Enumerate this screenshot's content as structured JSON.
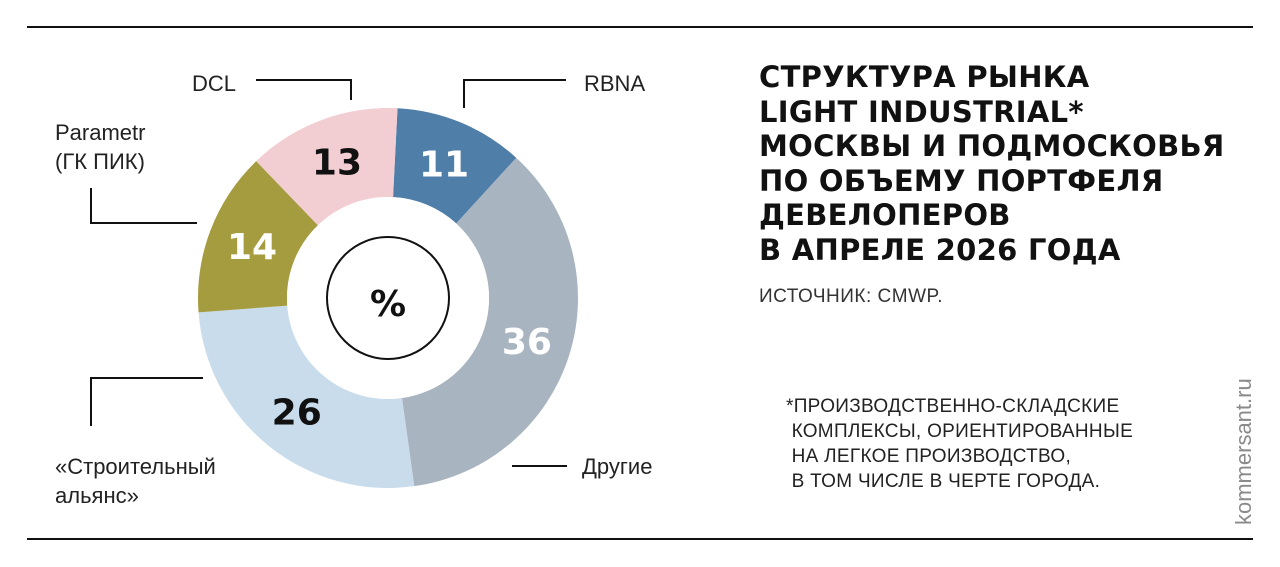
{
  "title_lines": [
    "СТРУКТУРА РЫНКА",
    "LIGHT INDUSTRIAL*",
    "МОСКВЫ И ПОДМОСКОВЬЯ",
    "ПО ОБЪЕМУ ПОРТФЕЛЯ",
    "ДЕВЕЛОПЕРОВ",
    "В АПРЕЛЕ 2026 ГОДА"
  ],
  "source": "ИСТОЧНИК: CMWP.",
  "footnote_lines": [
    "*ПРОИЗВОДСТВЕННО-СКЛАДСКИЕ",
    " КОМПЛЕКСЫ, ОРИЕНТИРОВАННЫЕ",
    " НА ЛЕГКОЕ ПРОИЗВОДСТВО,",
    " В ТОМ ЧИСЛЕ В ЧЕРТЕ ГОРОДА."
  ],
  "site": "kommersant.ru",
  "chart_data": {
    "type": "pie",
    "donut": true,
    "center_label": "%",
    "slices": [
      {
        "label": "RBNA",
        "value": 11,
        "color": "#4f7ea8",
        "value_color": "#ffffff"
      },
      {
        "label": "Другие",
        "value": 36,
        "color": "#a9b4c1",
        "value_color": "#ffffff"
      },
      {
        "label": "«Строительный альянс»",
        "value": 26,
        "color": "#c9dcec",
        "value_color": "#111111"
      },
      {
        "label": "Parametr (ГК ПИК)",
        "value": 14,
        "color": "#a59b3f",
        "value_color": "#ffffff"
      },
      {
        "label": "DCL",
        "value": 13,
        "color": "#f2cdd2",
        "value_color": "#111111"
      }
    ]
  }
}
